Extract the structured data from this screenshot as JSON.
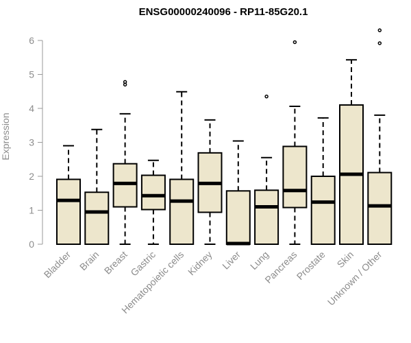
{
  "colors": {
    "box_fill": "#ede6cc",
    "box_stroke": "#000000",
    "axis": "#999999",
    "text": "#8c8c8c"
  },
  "chart_data": {
    "type": "box",
    "title": "ENSG00000240096 - RP11-85G20.1",
    "ylabel": "Expression",
    "xlabel": "",
    "ylim": [
      0,
      6.3
    ],
    "yticks": [
      0,
      1,
      2,
      3,
      4,
      5,
      6
    ],
    "grid": false,
    "legend": "none",
    "categories": [
      "Bladder",
      "Brain",
      "Breast",
      "Gastric",
      "Hematopoietic cells",
      "Kidney",
      "Liver",
      "Lung",
      "Pancreas",
      "Prostate",
      "Skin",
      "Unknown / Other"
    ],
    "boxes": [
      {
        "whisker_low": 0,
        "q1": 0,
        "median": 1.29,
        "q3": 1.91,
        "whisker_high": 2.9,
        "outliers": []
      },
      {
        "whisker_low": 0,
        "q1": 0,
        "median": 0.95,
        "q3": 1.53,
        "whisker_high": 3.38,
        "outliers": []
      },
      {
        "whisker_low": 0,
        "q1": 1.1,
        "median": 1.79,
        "q3": 2.37,
        "whisker_high": 3.84,
        "outliers": [
          4.7,
          4.78
        ]
      },
      {
        "whisker_low": 0,
        "q1": 1.02,
        "median": 1.43,
        "q3": 2.03,
        "whisker_high": 2.47,
        "outliers": []
      },
      {
        "whisker_low": 0,
        "q1": 0,
        "median": 1.27,
        "q3": 1.91,
        "whisker_high": 4.49,
        "outliers": []
      },
      {
        "whisker_low": 0,
        "q1": 0.94,
        "median": 1.79,
        "q3": 2.69,
        "whisker_high": 3.66,
        "outliers": []
      },
      {
        "whisker_low": 0,
        "q1": 0,
        "median": 0.02,
        "q3": 1.57,
        "whisker_high": 3.04,
        "outliers": []
      },
      {
        "whisker_low": 0,
        "q1": 0,
        "median": 1.1,
        "q3": 1.59,
        "whisker_high": 2.55,
        "outliers": [
          4.35
        ]
      },
      {
        "whisker_low": 0,
        "q1": 1.08,
        "median": 1.58,
        "q3": 2.88,
        "whisker_high": 4.06,
        "outliers": [
          5.95
        ]
      },
      {
        "whisker_low": 0,
        "q1": 0,
        "median": 1.24,
        "q3": 2.0,
        "whisker_high": 3.72,
        "outliers": []
      },
      {
        "whisker_low": 0,
        "q1": 0,
        "median": 2.06,
        "q3": 4.1,
        "whisker_high": 5.43,
        "outliers": []
      },
      {
        "whisker_low": 0,
        "q1": 0,
        "median": 1.13,
        "q3": 2.11,
        "whisker_high": 3.8,
        "outliers": [
          5.92,
          6.3
        ]
      }
    ]
  }
}
